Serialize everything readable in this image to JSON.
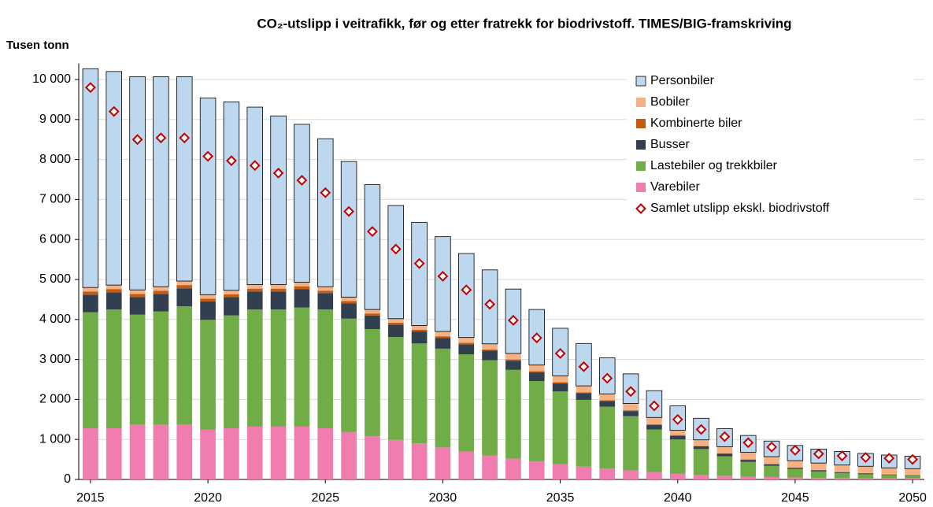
{
  "chart_data": {
    "type": "bar",
    "title": "CO₂-utslipp  i veitrafikk, før og etter fratrekk for biodrivstoff. TIMES/BIG-framskriving",
    "y_label": "Tusen tonn",
    "stacked": true,
    "x": [
      2015,
      2016,
      2017,
      2018,
      2019,
      2020,
      2021,
      2022,
      2023,
      2024,
      2025,
      2026,
      2027,
      2028,
      2029,
      2030,
      2031,
      2032,
      2033,
      2034,
      2035,
      2036,
      2037,
      2038,
      2039,
      2040,
      2041,
      2042,
      2043,
      2044,
      2045,
      2046,
      2047,
      2048,
      2049,
      2050
    ],
    "xlim": [
      2014.5,
      2050.5
    ],
    "xticks": [
      2015,
      2020,
      2025,
      2030,
      2035,
      2040,
      2045,
      2050
    ],
    "ylim": [
      0,
      10400
    ],
    "yticks": [
      0,
      {
        "value": 1000,
        "label": "1 000"
      },
      {
        "value": 2000,
        "label": "2 000"
      },
      {
        "value": 3000,
        "label": "3 000"
      },
      {
        "value": 4000,
        "label": "4 000"
      },
      {
        "value": 5000,
        "label": "5 000"
      },
      {
        "value": 6000,
        "label": "6 000"
      },
      {
        "value": 7000,
        "label": "7 000"
      },
      {
        "value": 8000,
        "label": "8 000"
      },
      {
        "value": 9000,
        "label": "9 000"
      },
      {
        "value": 10000,
        "label": "10 000"
      }
    ],
    "grid": true,
    "legend": "upper right",
    "series": [
      {
        "name": "Personbiler",
        "color": "#bdd7ee",
        "values": [
          5470,
          5340,
          5330,
          5250,
          5110,
          4920,
          4710,
          4440,
          4220,
          3950,
          3700,
          3390,
          3120,
          2830,
          2580,
          2370,
          2100,
          1850,
          1610,
          1390,
          1190,
          1060,
          900,
          740,
          670,
          610,
          540,
          450,
          420,
          390,
          380,
          350,
          340,
          320,
          320,
          310
        ]
      },
      {
        "name": "Bobiler",
        "color": "#f4b183",
        "values": [
          100,
          100,
          100,
          100,
          100,
          100,
          100,
          100,
          100,
          100,
          100,
          100,
          100,
          100,
          110,
          120,
          130,
          140,
          150,
          150,
          160,
          160,
          160,
          170,
          170,
          120,
          150,
          170,
          180,
          180,
          170,
          170,
          170,
          170,
          160,
          160
        ]
      },
      {
        "name": "Kombinerte biler",
        "color": "#c55a11",
        "values": [
          80,
          80,
          80,
          80,
          80,
          70,
          70,
          70,
          70,
          70,
          60,
          60,
          50,
          50,
          40,
          40,
          40,
          30,
          30,
          30,
          30,
          20,
          20,
          20,
          20,
          20,
          10,
          10,
          10,
          10,
          10,
          10,
          10,
          10,
          10,
          10
        ]
      },
      {
        "name": "Busser",
        "color": "#323f4f",
        "values": [
          440,
          430,
          440,
          440,
          450,
          460,
          460,
          450,
          450,
          460,
          410,
          380,
          340,
          310,
          300,
          270,
          250,
          240,
          230,
          220,
          200,
          170,
          140,
          130,
          110,
          90,
          70,
          60,
          50,
          40,
          30,
          30,
          20,
          20,
          10,
          10
        ]
      },
      {
        "name": "Lastebiler og trekkbiler",
        "color": "#70ad47",
        "values": [
          2900,
          2970,
          2750,
          2830,
          2960,
          2740,
          2820,
          2930,
          2930,
          2980,
          2970,
          2830,
          2680,
          2570,
          2500,
          2470,
          2430,
          2380,
          2220,
          2010,
          1820,
          1670,
          1550,
          1360,
          1070,
          860,
          650,
          490,
          370,
          280,
          210,
          160,
          120,
          100,
          80,
          60
        ]
      },
      {
        "name": "Varebiler",
        "color": "#f07cb0",
        "values": [
          1280,
          1280,
          1370,
          1370,
          1370,
          1250,
          1280,
          1320,
          1320,
          1320,
          1280,
          1190,
          1080,
          990,
          900,
          800,
          700,
          600,
          520,
          450,
          380,
          320,
          270,
          220,
          180,
          140,
          110,
          90,
          70,
          60,
          50,
          40,
          40,
          30,
          30,
          30
        ]
      },
      {
        "name": "Samlet utslipp ekskl. biodrivstoff",
        "color": "#c00000",
        "type": "scatter",
        "values": [
          9800,
          9200,
          8500,
          8540,
          8540,
          8080,
          7970,
          7850,
          7660,
          7480,
          7170,
          6700,
          6200,
          5760,
          5400,
          5080,
          4740,
          4380,
          3980,
          3540,
          3150,
          2820,
          2530,
          2200,
          1840,
          1500,
          1250,
          1070,
          920,
          810,
          730,
          640,
          590,
          550,
          530,
          500
        ]
      }
    ]
  }
}
